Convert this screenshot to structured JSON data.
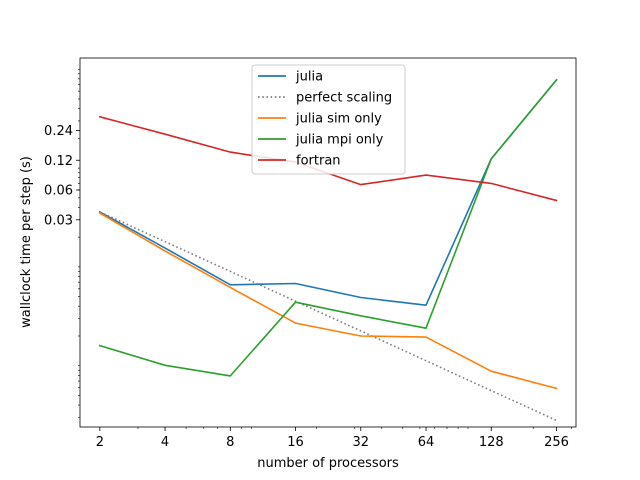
{
  "chart_data": {
    "type": "line",
    "xlabel": "number of processors",
    "ylabel": "wallclock time per step (s)",
    "x_scale": "log2",
    "y_scale": "log",
    "x": [
      2,
      4,
      8,
      16,
      32,
      64,
      128,
      256
    ],
    "x_tick_labels": [
      "2",
      "4",
      "8",
      "16",
      "32",
      "64",
      "128",
      "256"
    ],
    "y_tick_values": [
      0.03,
      0.06,
      0.12,
      0.24
    ],
    "y_tick_labels": [
      "0.03",
      "0.06",
      "0.12",
      "0.24"
    ],
    "ylim": [
      0.00024,
      1.3
    ],
    "legend_position": "top-center",
    "grid": false,
    "series": [
      {
        "name": "julia",
        "color": "#1f77b4",
        "style": "solid",
        "values": [
          0.036,
          0.0155,
          0.0066,
          0.0068,
          0.0049,
          0.0041,
          0.124,
          0.78
        ]
      },
      {
        "name": "perfect scaling",
        "color": "#7f7f7f",
        "style": "dotted",
        "values": [
          0.036,
          0.018,
          0.009,
          0.0045,
          0.00225,
          0.001125,
          0.00056,
          0.00028
        ]
      },
      {
        "name": "julia sim only",
        "color": "#ff7f0e",
        "style": "solid",
        "values": [
          0.035,
          0.0145,
          0.0062,
          0.0027,
          0.002,
          0.00195,
          0.00088,
          0.00059
        ]
      },
      {
        "name": "julia mpi only",
        "color": "#2ca02c",
        "style": "solid",
        "values": [
          0.0016,
          0.00101,
          0.00079,
          0.0044,
          0.0032,
          0.0024,
          0.124,
          0.78
        ]
      },
      {
        "name": "fortran",
        "color": "#d62728",
        "style": "solid",
        "values": [
          0.33,
          0.22,
          0.145,
          0.115,
          0.068,
          0.085,
          0.07,
          0.047
        ]
      }
    ]
  }
}
